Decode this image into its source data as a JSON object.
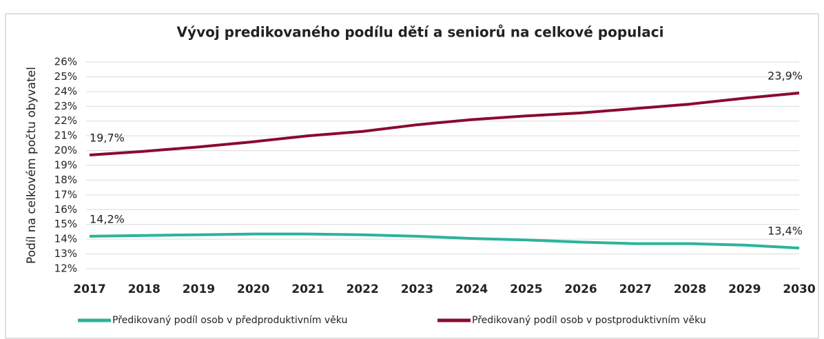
{
  "chart_data": {
    "type": "line",
    "title": "Vývoj predikovaného podílu dětí a seniorů na celkové populaci",
    "y_label": "Podíl na celkovém počtu obyvatel",
    "categories": [
      "2017",
      "2018",
      "2019",
      "2020",
      "2021",
      "2022",
      "2023",
      "2024",
      "2025",
      "2026",
      "2027",
      "2028",
      "2029",
      "2030"
    ],
    "series": [
      {
        "name": "Předikovaný podíl osob v předproduktivním věku",
        "color": "#2bb39c",
        "values": [
          14.2,
          14.25,
          14.3,
          14.35,
          14.35,
          14.3,
          14.2,
          14.05,
          13.95,
          13.8,
          13.7,
          13.7,
          13.6,
          13.4
        ],
        "value_labels": [
          "14,2%",
          null,
          null,
          null,
          null,
          null,
          null,
          null,
          null,
          null,
          null,
          null,
          null,
          "13,4%"
        ]
      },
      {
        "name": "Předikovaný podíl osob v postproduktivním věku",
        "color": "#8b0a2e",
        "values": [
          19.7,
          19.95,
          20.25,
          20.6,
          21.0,
          21.3,
          21.75,
          22.1,
          22.35,
          22.55,
          22.85,
          23.15,
          23.55,
          23.9
        ],
        "value_labels": [
          "19,7%",
          null,
          null,
          null,
          null,
          null,
          null,
          null,
          null,
          null,
          null,
          null,
          null,
          "23,9%"
        ]
      }
    ],
    "ylim": [
      12,
      26
    ],
    "yticks": [
      {
        "value": 12,
        "label": "12%"
      },
      {
        "value": 13,
        "label": "13%"
      },
      {
        "value": 14,
        "label": "14%"
      },
      {
        "value": 15,
        "label": "15%"
      },
      {
        "value": 16,
        "label": "16%"
      },
      {
        "value": 17,
        "label": "17%"
      },
      {
        "value": 18,
        "label": "18%"
      },
      {
        "value": 19,
        "label": "19%"
      },
      {
        "value": 20,
        "label": "20%"
      },
      {
        "value": 21,
        "label": "21%"
      },
      {
        "value": 22,
        "label": "22%"
      },
      {
        "value": 23,
        "label": "23%"
      },
      {
        "value": 24,
        "label": "24%"
      },
      {
        "value": 25,
        "label": "25%"
      },
      {
        "value": 26,
        "label": "26%"
      }
    ],
    "grid": true,
    "legend": "bottom"
  }
}
